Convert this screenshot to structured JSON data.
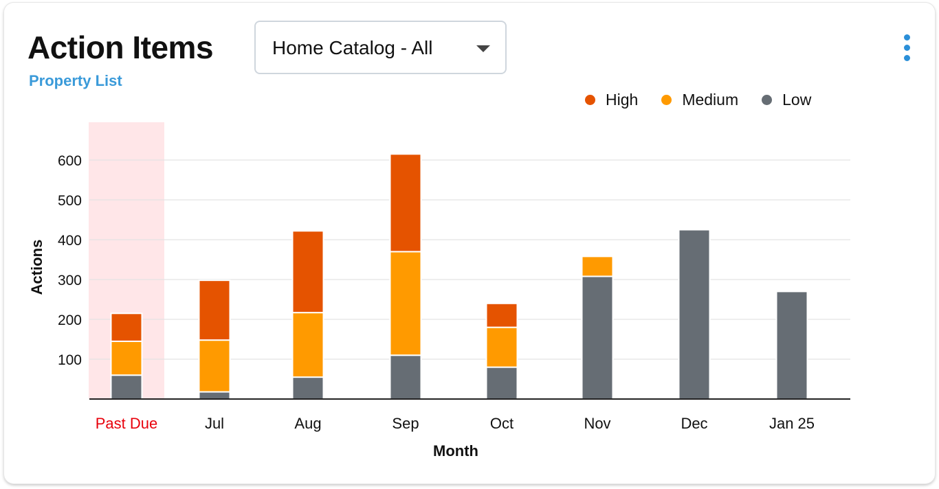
{
  "header": {
    "title": "Action Items",
    "link_label": "Property List",
    "filter": {
      "selected": "Home Catalog - All",
      "caret_icon": "chevron-down-icon"
    },
    "menu_icon": "kebab-menu-icon"
  },
  "colors": {
    "High": "#e55300",
    "Medium": "#ff9a00",
    "Low": "#666d74",
    "past_due_label": "#e8000b",
    "past_due_band": "#ffe6e8",
    "link": "#3a9ad9"
  },
  "chart_data": {
    "type": "bar",
    "stacked": true,
    "categories": [
      "Past Due",
      "Jul",
      "Aug",
      "Sep",
      "Oct",
      "Nov",
      "Dec",
      "Jan 25"
    ],
    "highlighted_category": "Past Due",
    "series": [
      {
        "name": "Low",
        "values": [
          60,
          18,
          55,
          110,
          80,
          308,
          425,
          270
        ]
      },
      {
        "name": "Medium",
        "values": [
          85,
          130,
          162,
          260,
          100,
          50,
          0,
          0
        ]
      },
      {
        "name": "High",
        "values": [
          70,
          150,
          205,
          245,
          60,
          0,
          0,
          0
        ]
      }
    ],
    "legend_order": [
      "High",
      "Medium",
      "Low"
    ],
    "legend_position": "top-right",
    "xlabel": "Month",
    "ylabel": "Actions",
    "ylim": [
      0,
      690
    ],
    "yticks": [
      100,
      200,
      300,
      400,
      500,
      600
    ],
    "grid": true
  }
}
